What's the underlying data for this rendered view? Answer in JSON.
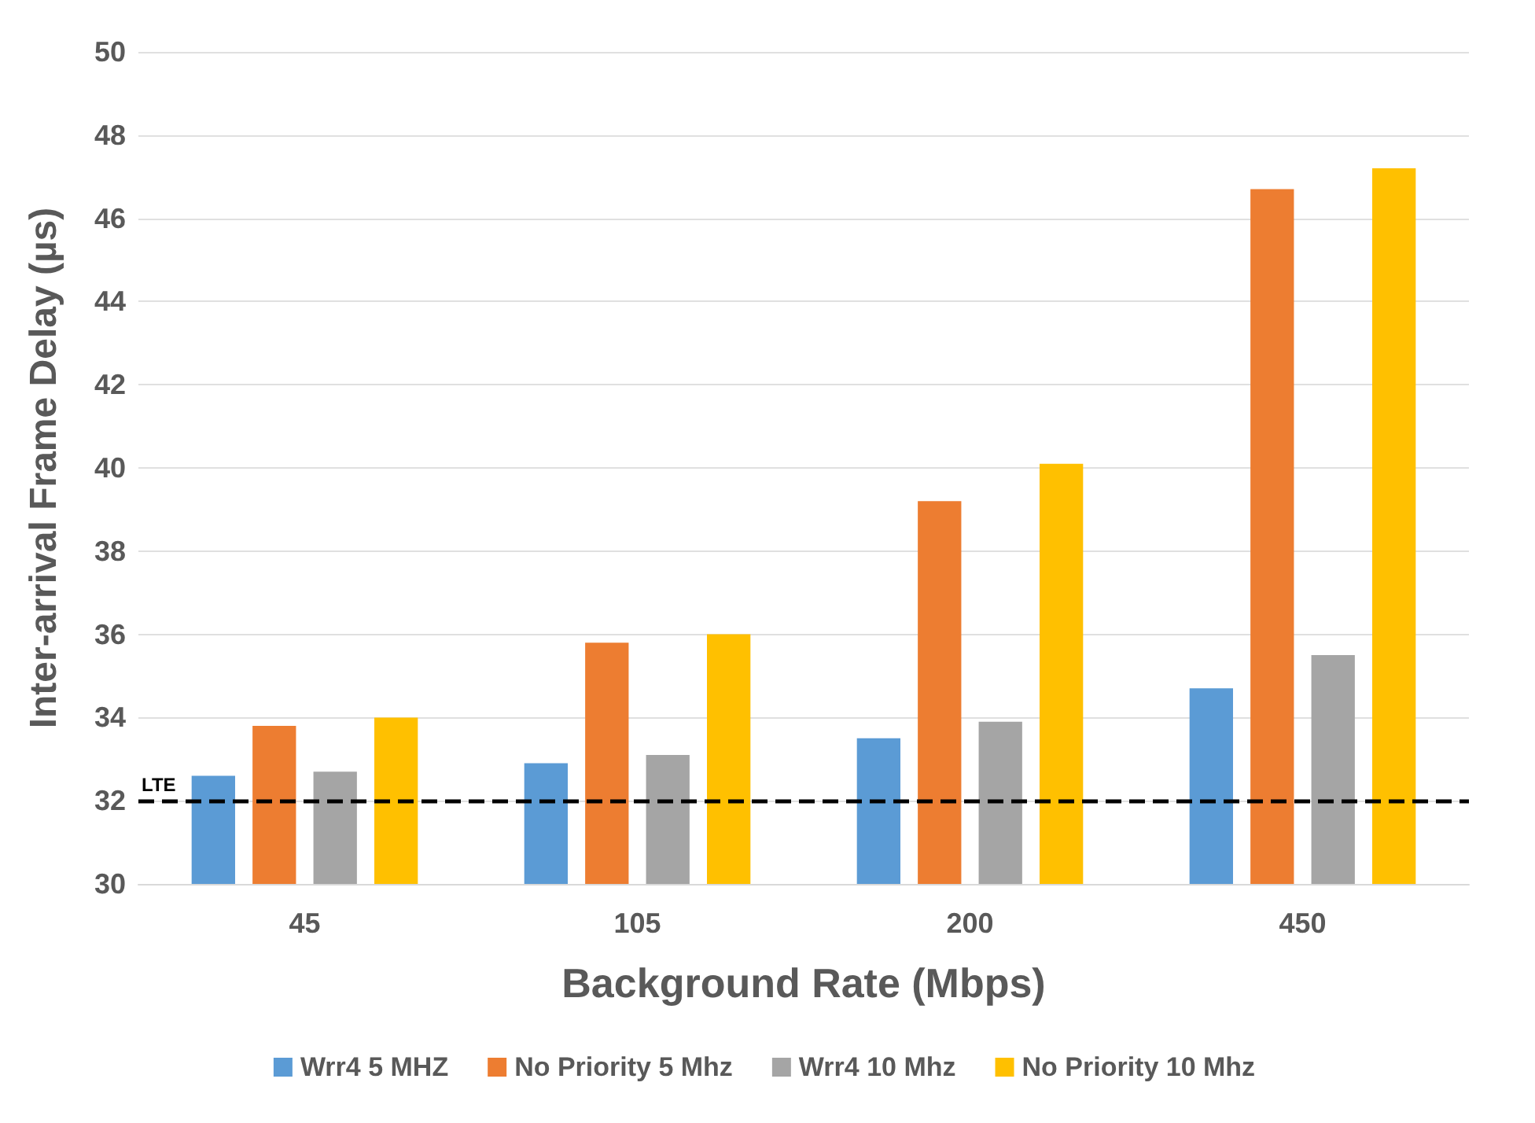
{
  "chart_data": {
    "type": "bar",
    "xlabel": "Background Rate (Mbps)",
    "ylabel": "Inter-arrival Frame Delay (µs)",
    "categories": [
      "45",
      "105",
      "200",
      "450"
    ],
    "series": [
      {
        "name": "Wrr4 5 MHZ",
        "color": "#5b9bd5",
        "values": [
          32.6,
          32.9,
          33.5,
          34.7
        ]
      },
      {
        "name": "No Priority 5 Mhz",
        "color": "#ed7d31",
        "values": [
          33.8,
          35.8,
          39.2,
          46.7
        ]
      },
      {
        "name": "Wrr4 10 Mhz",
        "color": "#a5a5a5",
        "values": [
          32.7,
          33.1,
          33.9,
          35.5
        ]
      },
      {
        "name": "No Priority 10 Mhz",
        "color": "#ffc000",
        "values": [
          34.0,
          36.0,
          40.1,
          47.2
        ]
      }
    ],
    "ylim": [
      30,
      50
    ],
    "yticks": [
      30,
      32,
      34,
      36,
      38,
      40,
      42,
      44,
      46,
      48,
      50
    ],
    "ref_lines": [
      {
        "axis": "y",
        "value": 32,
        "label": "LTE",
        "color": "#000000",
        "line_style": "dashed"
      }
    ],
    "grid": "y",
    "legend": "bottom"
  }
}
